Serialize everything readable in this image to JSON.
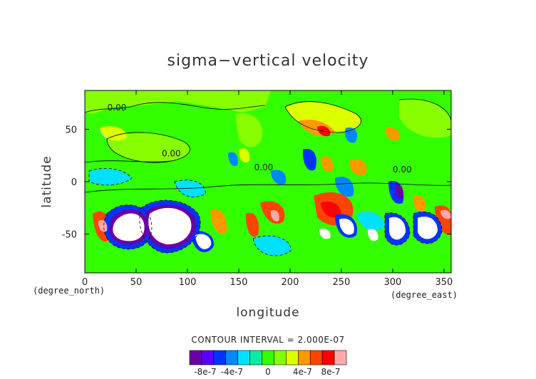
{
  "chart_data": {
    "type": "contour",
    "title": "sigma−vertical velocity",
    "xlabel": "longitude",
    "ylabel": "latitude",
    "x_unit": "(degree_east)",
    "y_unit": "(degree_north)",
    "xlim": [
      0,
      357
    ],
    "ylim": [
      -87,
      87
    ],
    "x_ticks": [
      0,
      50,
      100,
      150,
      200,
      250,
      300,
      350
    ],
    "y_ticks": [
      50,
      0,
      -50
    ],
    "contour_interval_text": "CONTOUR INTERVAL = 2.000E-07",
    "contour_labels": [
      {
        "text": "0.00",
        "lon": 22,
        "lat": 68
      },
      {
        "text": "0.00",
        "lon": 75,
        "lat": 24
      },
      {
        "text": "0.00",
        "lon": 300,
        "lat": 9
      },
      {
        "text": "0.00",
        "lon": 165,
        "lat": 11
      }
    ],
    "colorbar": {
      "colors": [
        "#6a00a8",
        "#5a00ff",
        "#0033ff",
        "#0088ff",
        "#00e0ff",
        "#00f0a0",
        "#33ff00",
        "#88ff00",
        "#ddff00",
        "#ff9900",
        "#ff4400",
        "#ff0000",
        "#ffaaaa"
      ],
      "tick_labels": [
        "-8e-7",
        "-4e-7",
        "0",
        "4e-7",
        "8e-7"
      ]
    },
    "features": [
      {
        "lon": 22,
        "lat": -60,
        "kind": "low"
      },
      {
        "lon": 60,
        "lat": -45,
        "kind": "low"
      },
      {
        "lon": 86,
        "lat": -42,
        "kind": "low"
      },
      {
        "lon": 122,
        "lat": -58,
        "kind": "low"
      },
      {
        "lon": 253,
        "lat": -45,
        "kind": "low"
      },
      {
        "lon": 300,
        "lat": -48,
        "kind": "low"
      },
      {
        "lon": 332,
        "lat": -50,
        "kind": "low"
      }
    ]
  }
}
